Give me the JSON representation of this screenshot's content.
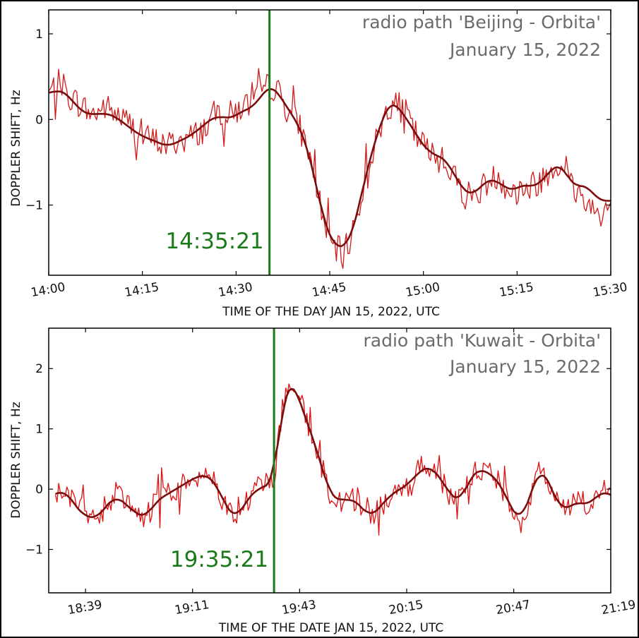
{
  "chart_data": [
    {
      "type": "line",
      "title": "",
      "annotation_line1": "radio path  'Beijing - Orbita'",
      "annotation_line2": "January 15, 2022",
      "xlabel": "TIME OF THE DAY JAN 15, 2022, UTC",
      "ylabel": "DOPPLER  SHIFT,  Hz",
      "x_unit": "minutes after 14:00 UTC",
      "xlim": [
        0,
        90
      ],
      "ylim": [
        -1.82,
        1.28
      ],
      "x_ticks": [
        0,
        15,
        30,
        45,
        60,
        75,
        90
      ],
      "x_tick_labels": [
        "14:00",
        "14:15",
        "14:30",
        "14:45",
        "15:00",
        "15:15",
        "15:30"
      ],
      "y_ticks": [
        -1,
        0,
        1
      ],
      "y_tick_labels": [
        "−1",
        "0",
        "1"
      ],
      "event_x": 35.35,
      "event_label": "14:35:21",
      "event_color": "#1a7a1a",
      "series": [
        {
          "name": "",
          "color": "#d11a1a",
          "kind": "raw",
          "x": [
            0,
            2,
            3,
            5,
            7,
            9,
            11,
            13,
            15,
            17,
            19,
            21,
            23,
            25,
            27,
            29,
            31,
            33,
            34,
            35.3,
            36.5,
            38,
            40,
            41.5,
            43,
            44,
            45.5,
            47,
            48,
            49.5,
            51,
            53,
            54,
            55,
            57,
            59,
            61,
            62.5,
            64,
            66,
            68,
            70,
            72,
            74,
            76,
            78,
            80,
            82,
            84,
            86,
            88,
            90
          ],
          "values": [
            0.3,
            0.45,
            0.28,
            0.18,
            0.05,
            0.15,
            0.05,
            -0.05,
            -0.2,
            -0.25,
            -0.3,
            -0.25,
            -0.2,
            -0.1,
            0.1,
            0.05,
            0.15,
            0.2,
            0.3,
            0.4,
            0.35,
            0.15,
            -0.05,
            -0.35,
            -0.8,
            -1.2,
            -1.5,
            -1.55,
            -1.45,
            -1.1,
            -0.55,
            -0.15,
            0.1,
            0.2,
            0.1,
            -0.2,
            -0.4,
            -0.45,
            -0.55,
            -0.8,
            -0.9,
            -0.75,
            -0.65,
            -0.85,
            -0.8,
            -0.75,
            -0.6,
            -0.5,
            -0.8,
            -0.95,
            -1.1,
            -1.0
          ],
          "noise_amplitude": 0.17
        },
        {
          "name": "",
          "color": "#7a0d0d",
          "kind": "smoothed",
          "x": [
            0,
            1.5,
            3,
            5,
            7,
            9,
            11,
            13,
            15,
            17,
            19,
            21,
            23,
            25,
            27,
            29,
            31,
            33,
            34,
            35.3,
            36.5,
            38,
            40,
            41.5,
            43,
            44,
            45.5,
            47,
            48,
            49.5,
            51,
            53,
            54,
            55,
            57,
            59,
            61,
            62.5,
            64,
            66,
            68,
            70,
            72,
            74,
            76,
            78,
            80,
            82,
            84,
            86,
            88,
            90
          ],
          "values": [
            0.3,
            0.35,
            0.3,
            0.1,
            0.05,
            0.08,
            0.02,
            -0.1,
            -0.2,
            -0.25,
            -0.32,
            -0.25,
            -0.18,
            -0.05,
            0.05,
            0.0,
            0.1,
            0.15,
            0.28,
            0.4,
            0.35,
            0.15,
            -0.05,
            -0.35,
            -0.8,
            -1.2,
            -1.45,
            -1.52,
            -1.45,
            -1.1,
            -0.55,
            -0.1,
            0.15,
            0.22,
            0.05,
            -0.2,
            -0.4,
            -0.42,
            -0.5,
            -0.8,
            -0.9,
            -0.7,
            -0.72,
            -0.85,
            -0.75,
            -0.8,
            -0.62,
            -0.5,
            -0.8,
            -0.75,
            -0.95,
            -0.95
          ],
          "noise_amplitude": 0
        }
      ]
    },
    {
      "type": "line",
      "title": "",
      "annotation_line1": "radio path  'Kuwait - Orbita'",
      "annotation_line2": "January 15, 2022",
      "xlabel": "TIME OF THE DATE JAN 15, 2022, UTC",
      "ylabel": "DOPPLER  SHIFT,  Hz",
      "x_unit": "minutes after 18:00 UTC",
      "xlim": [
        28,
        196
      ],
      "ylim": [
        -1.72,
        2.67
      ],
      "x_ticks": [
        39,
        71,
        103,
        135,
        167,
        199
      ],
      "x_tick_labels": [
        "18:39",
        "19:11",
        "19:43",
        "20:15",
        "20:47",
        "21:19"
      ],
      "y_ticks": [
        -1,
        0,
        1,
        2
      ],
      "y_tick_labels": [
        "−1",
        "0",
        "1",
        "2"
      ],
      "event_x": 95.35,
      "event_label": "19:35:21",
      "event_color": "#1a7a1a",
      "series": [
        {
          "name": "",
          "color": "#e01010",
          "kind": "raw",
          "x": [
            30,
            33,
            36,
            39,
            42,
            45,
            48,
            51,
            54,
            57,
            60,
            63,
            66,
            69,
            72,
            75,
            78,
            81,
            84,
            87,
            90,
            93,
            95.35,
            97,
            99,
            101,
            103,
            106,
            109,
            112,
            115,
            118,
            121,
            124,
            127,
            130,
            133,
            136,
            139,
            142,
            145,
            148,
            151,
            154,
            157,
            160,
            163,
            166,
            169,
            172,
            175,
            178,
            181,
            184,
            187,
            190,
            193,
            196
          ],
          "values": [
            -0.1,
            0.0,
            -0.3,
            -0.45,
            -0.5,
            -0.3,
            -0.05,
            -0.25,
            -0.4,
            -0.5,
            -0.2,
            -0.1,
            0.0,
            0.1,
            0.2,
            0.25,
            0.1,
            -0.3,
            -0.55,
            -0.2,
            0.0,
            0.1,
            0.15,
            1.0,
            1.7,
            1.85,
            1.5,
            1.0,
            0.5,
            -0.1,
            -0.2,
            -0.15,
            -0.25,
            -0.5,
            -0.3,
            -0.1,
            0.0,
            0.1,
            0.35,
            0.4,
            0.2,
            -0.1,
            -0.2,
            0.2,
            0.35,
            0.25,
            0.1,
            -0.3,
            -0.6,
            -0.1,
            0.4,
            0.05,
            -0.4,
            -0.3,
            -0.2,
            -0.3,
            0.0,
            -0.1
          ],
          "noise_amplitude": 0.2
        },
        {
          "name": "",
          "color": "#7a0d0d",
          "kind": "smoothed",
          "x": [
            30,
            33,
            36,
            39,
            42,
            45,
            48,
            51,
            54,
            57,
            60,
            63,
            66,
            69,
            72,
            75,
            78,
            81,
            84,
            87,
            90,
            93,
            95.35,
            97,
            99,
            101,
            103,
            106,
            109,
            112,
            115,
            118,
            121,
            124,
            127,
            130,
            133,
            136,
            139,
            142,
            145,
            148,
            151,
            154,
            157,
            160,
            163,
            166,
            169,
            172,
            175,
            178,
            181,
            184,
            187,
            190,
            193,
            196
          ],
          "values": [
            -0.1,
            0.0,
            -0.3,
            -0.45,
            -0.5,
            -0.3,
            -0.1,
            -0.25,
            -0.4,
            -0.48,
            -0.2,
            -0.1,
            0.0,
            0.1,
            0.2,
            0.25,
            0.1,
            -0.3,
            -0.5,
            -0.2,
            0.0,
            0.05,
            0.12,
            1.0,
            1.75,
            1.8,
            1.45,
            1.0,
            0.5,
            -0.1,
            -0.2,
            -0.15,
            -0.25,
            -0.48,
            -0.3,
            -0.1,
            0.0,
            0.1,
            0.32,
            0.38,
            0.2,
            -0.1,
            -0.22,
            0.2,
            0.35,
            0.25,
            0.1,
            -0.3,
            -0.55,
            -0.1,
            0.4,
            0.05,
            -0.35,
            -0.28,
            -0.2,
            -0.28,
            0.0,
            -0.12
          ],
          "noise_amplitude": 0
        }
      ]
    }
  ]
}
